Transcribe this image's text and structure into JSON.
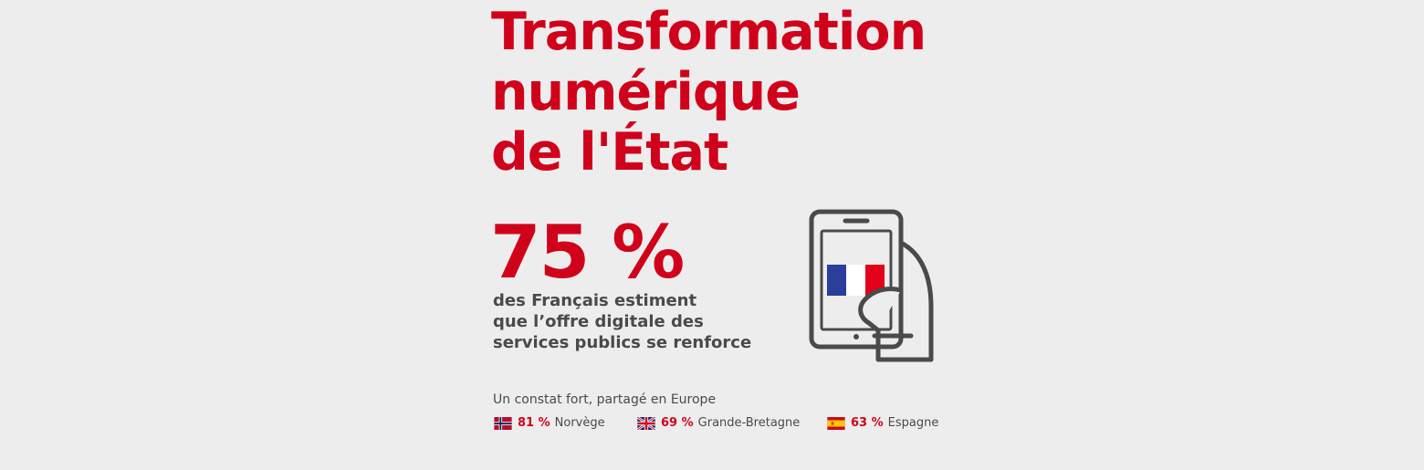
{
  "title": {
    "line1": "Transformation",
    "line2": "numérique",
    "line3": "de  l'État"
  },
  "stat": {
    "value": "75 %",
    "description": {
      "line1": "des Français estiment",
      "line2": "que l’offre digitale des",
      "line3": "services publics se renforce"
    }
  },
  "illustration": {
    "icon": "hand-holding-phone-icon",
    "flag": "france-flag-icon"
  },
  "europe": {
    "heading": "Un constat fort, partagé en Europe",
    "countries": [
      {
        "percent": "81 %",
        "name": "Norvège",
        "flag_icon": "norway-flag-icon"
      },
      {
        "percent": "69 %",
        "name": "Grande-Bretagne",
        "flag_icon": "uk-flag-icon"
      },
      {
        "percent": "63 %",
        "name": "Espagne",
        "flag_icon": "spain-flag-icon"
      }
    ]
  },
  "colors": {
    "accent": "#d0021b",
    "text": "#4a4a4a",
    "background": "#ededed",
    "icon_stroke": "#4a4a4a",
    "france_blue": "#2b3e9a",
    "france_red": "#e2001a"
  }
}
